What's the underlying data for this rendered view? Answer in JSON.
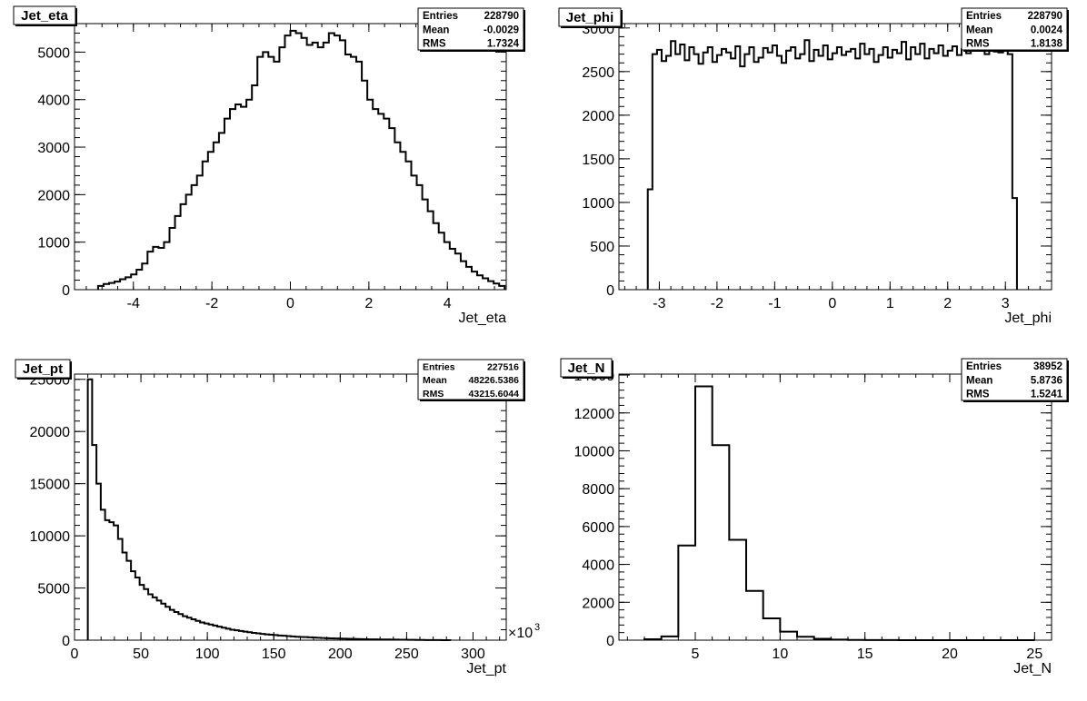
{
  "chart_data": [
    {
      "type": "histogram",
      "title": "Jet_eta",
      "xlabel": "Jet_eta",
      "ylabel": "",
      "xlim": [
        -5.5,
        5.5
      ],
      "ylim": [
        0,
        5600
      ],
      "xticks": [
        -4,
        -2,
        0,
        2,
        4
      ],
      "yticks": [
        0,
        1000,
        2000,
        3000,
        4000,
        5000
      ],
      "stats": [
        [
          "Entries",
          "228790"
        ],
        [
          "Mean",
          "-0.0029"
        ],
        [
          "RMS",
          "1.7324"
        ]
      ],
      "bin_start": -4.9,
      "bin_width": 0.14,
      "values": [
        80,
        120,
        140,
        170,
        220,
        260,
        320,
        420,
        550,
        800,
        900,
        880,
        1000,
        1300,
        1550,
        1800,
        2000,
        2200,
        2400,
        2700,
        2900,
        3100,
        3300,
        3600,
        3800,
        3900,
        3850,
        4000,
        4300,
        4900,
        5000,
        4900,
        4800,
        5100,
        5350,
        5450,
        5400,
        5300,
        5150,
        5200,
        5100,
        5200,
        5400,
        5350,
        5250,
        4950,
        4900,
        4800,
        4400,
        4000,
        3800,
        3700,
        3600,
        3400,
        3100,
        2900,
        2700,
        2400,
        2200,
        1900,
        1650,
        1400,
        1200,
        1000,
        860,
        760,
        600,
        480,
        380,
        300,
        240,
        180,
        130,
        80
      ]
    },
    {
      "type": "histogram",
      "title": "Jet_phi",
      "xlabel": "Jet_phi",
      "ylabel": "",
      "xlim": [
        -3.7,
        3.8
      ],
      "ylim": [
        0,
        3050
      ],
      "xticks": [
        -3,
        -2,
        -1,
        0,
        1,
        2,
        3
      ],
      "yticks": [
        0,
        500,
        1000,
        1500,
        2000,
        2500,
        3000
      ],
      "ytick_labels": [
        "0",
        "500",
        "1000",
        "1500",
        "2000",
        "2500",
        "3000"
      ],
      "stats": [
        [
          "Entries",
          "228790"
        ],
        [
          "Mean",
          "0.0024"
        ],
        [
          "RMS",
          "1.8138"
        ]
      ],
      "bin_start": -3.2,
      "bin_width": 0.08,
      "values": [
        1150,
        2700,
        2750,
        2620,
        2680,
        2850,
        2700,
        2810,
        2630,
        2780,
        2700,
        2590,
        2720,
        2780,
        2610,
        2690,
        2760,
        2720,
        2650,
        2790,
        2560,
        2700,
        2780,
        2610,
        2660,
        2770,
        2720,
        2800,
        2680,
        2600,
        2740,
        2780,
        2650,
        2700,
        2860,
        2620,
        2750,
        2680,
        2800,
        2640,
        2710,
        2780,
        2690,
        2730,
        2760,
        2650,
        2820,
        2700,
        2760,
        2610,
        2690,
        2780,
        2660,
        2750,
        2710,
        2840,
        2640,
        2780,
        2700,
        2820,
        2650,
        2760,
        2710,
        2800,
        2680,
        2740,
        2790,
        2690,
        2760,
        2710,
        2810,
        2760,
        2820,
        2700,
        2760,
        2730,
        2720,
        2760,
        2700,
        1050
      ]
    },
    {
      "type": "histogram",
      "title": "Jet_pt",
      "xlabel": "Jet_pt",
      "ylabel": "",
      "xlim": [
        0,
        325
      ],
      "ylim": [
        0,
        25500
      ],
      "xticks": [
        0,
        50,
        100,
        150,
        200,
        250,
        300
      ],
      "yticks": [
        0,
        5000,
        10000,
        15000,
        20000,
        25000
      ],
      "x_multiplier": "×10",
      "x_multiplier_exp": "3",
      "stats": [
        [
          "Entries",
          "227516"
        ],
        [
          "Mean",
          "48226.5386"
        ],
        [
          "RMS",
          "43215.6044"
        ]
      ],
      "bin_start": 10,
      "bin_width": 3.25,
      "values": [
        25000,
        18700,
        15000,
        12500,
        11500,
        11300,
        11000,
        9700,
        8400,
        7600,
        6600,
        6000,
        5300,
        4900,
        4400,
        4100,
        3800,
        3500,
        3200,
        2900,
        2700,
        2500,
        2300,
        2150,
        2000,
        1850,
        1700,
        1600,
        1500,
        1400,
        1300,
        1200,
        1100,
        1000,
        950,
        880,
        820,
        760,
        700,
        650,
        600,
        560,
        520,
        490,
        450,
        420,
        390,
        360,
        330,
        310,
        290,
        270,
        250,
        230,
        210,
        190,
        170,
        160,
        150,
        140,
        130,
        120,
        110,
        100,
        90,
        80,
        75,
        70,
        65,
        60,
        55,
        50,
        45,
        40,
        35,
        30,
        25,
        20,
        15,
        10,
        8,
        6,
        4,
        2
      ]
    },
    {
      "type": "histogram",
      "title": "Jet_N",
      "xlabel": "Jet_N",
      "ylabel": "",
      "xlim": [
        0.5,
        26
      ],
      "ylim": [
        0,
        14050
      ],
      "xticks": [
        5,
        10,
        15,
        20,
        25
      ],
      "yticks": [
        0,
        2000,
        4000,
        6000,
        8000,
        10000,
        12000,
        14000
      ],
      "stats": [
        [
          "Entries",
          "38952"
        ],
        [
          "Mean",
          "5.8736"
        ],
        [
          "RMS",
          "1.5241"
        ]
      ],
      "bin_start": 2,
      "bin_width": 1,
      "values": [
        50,
        200,
        5000,
        13400,
        10300,
        5300,
        2600,
        1150,
        450,
        180,
        70,
        30,
        10,
        5,
        3,
        2,
        1,
        1,
        0,
        0,
        0,
        0,
        0
      ]
    }
  ]
}
